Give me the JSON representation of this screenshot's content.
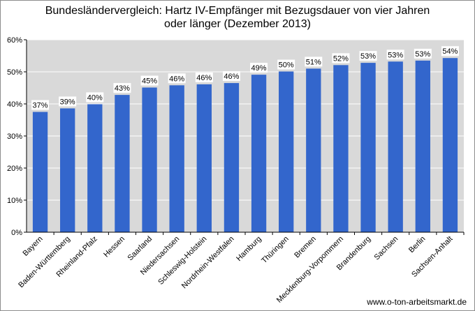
{
  "chart_data": {
    "type": "bar",
    "title_line1": "Bundesländervergleich: Hartz  IV-Empfänger mit Bezugsdauer von vier Jahren",
    "title_line2": "oder länger (Dezember 2013)",
    "xlabel": "",
    "ylabel": "",
    "ylim": [
      0,
      60
    ],
    "yticks": [
      "0%",
      "10%",
      "20%",
      "30%",
      "40%",
      "50%",
      "60%"
    ],
    "categories": [
      "Bayern",
      "Baden-Württemberg",
      "Rheinland-Pfalz",
      "Hessen",
      "Saarland",
      "Niedersachsen",
      "Schleswig-Holstein",
      "Nordrhein-Westfalen",
      "Hamburg",
      "Thüringen",
      "Bremen",
      "Mecklenburg-Vorpommern",
      "Brandenburg",
      "Sachsen",
      "Berlin",
      "Sachsen-Anhalt"
    ],
    "values": [
      37.5,
      38.6,
      39.9,
      42.8,
      45.1,
      45.8,
      46.1,
      46.5,
      49.1,
      50.1,
      51.0,
      52.1,
      52.8,
      53.2,
      53.5,
      54.3
    ],
    "labels": [
      "37%",
      "39%",
      "40%",
      "43%",
      "45%",
      "46%",
      "46%",
      "46%",
      "49%",
      "50%",
      "51%",
      "52%",
      "53%",
      "53%",
      "53%",
      "54%"
    ],
    "grid": true,
    "legend": "none",
    "colors": {
      "bar": "#3366CC",
      "plot_bg": "#D9D9D9",
      "gridline": "#FFFFFF"
    }
  },
  "source": "www.o-ton-arbeitsmarkt.de"
}
